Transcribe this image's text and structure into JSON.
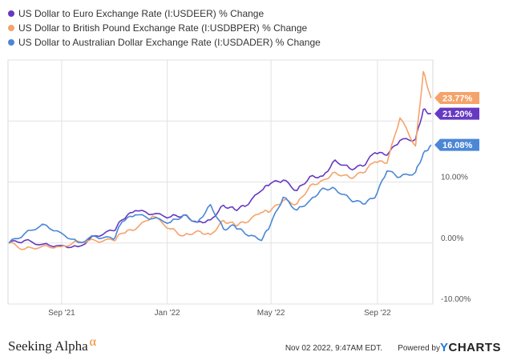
{
  "legend": [
    {
      "label": "US Dollar to Euro Exchange Rate (I:USDEER) % Change",
      "color": "#6639c2"
    },
    {
      "label": "US Dollar to British Pound Exchange Rate (I:USDBPER) % Change",
      "color": "#f5a36b"
    },
    {
      "label": "US Dollar to Australian Dollar Exchange Rate (I:USDADER) % Change",
      "color": "#4b87d6"
    }
  ],
  "chart_data": {
    "type": "line",
    "x_ticks": [
      "Sep '21",
      "Jan '22",
      "May '22",
      "Sep '22"
    ],
    "y_ticks": [
      "-10.00%",
      "0.00%",
      "10.00%"
    ],
    "ylim": [
      -10,
      30
    ],
    "grid": true,
    "series": [
      {
        "name": "US Dollar to Euro Exchange Rate (I:USDEER) % Change",
        "color": "#6639c2",
        "end_label": "21.20%",
        "points": [
          [
            "2021-07-02",
            0.0
          ],
          [
            "2021-07-20",
            0.4
          ],
          [
            "2021-08-10",
            -0.2
          ],
          [
            "2021-08-31",
            -0.4
          ],
          [
            "2021-09-20",
            -0.6
          ],
          [
            "2021-10-10",
            1.2
          ],
          [
            "2021-10-31",
            2.0
          ],
          [
            "2021-11-10",
            3.8
          ],
          [
            "2021-11-25",
            5.3
          ],
          [
            "2021-12-15",
            4.7
          ],
          [
            "2022-01-05",
            4.3
          ],
          [
            "2022-01-20",
            4.6
          ],
          [
            "2022-02-05",
            3.4
          ],
          [
            "2022-02-20",
            3.8
          ],
          [
            "2022-03-07",
            6.2
          ],
          [
            "2022-03-20",
            5.5
          ],
          [
            "2022-04-01",
            6.0
          ],
          [
            "2022-04-20",
            8.6
          ],
          [
            "2022-04-30",
            9.7
          ],
          [
            "2022-05-15",
            10.3
          ],
          [
            "2022-05-31",
            8.6
          ],
          [
            "2022-06-15",
            10.9
          ],
          [
            "2022-06-30",
            11.0
          ],
          [
            "2022-07-14",
            13.6
          ],
          [
            "2022-07-31",
            12.2
          ],
          [
            "2022-08-15",
            12.6
          ],
          [
            "2022-08-29",
            14.8
          ],
          [
            "2022-09-12",
            14.4
          ],
          [
            "2022-09-27",
            16.8
          ],
          [
            "2022-10-15",
            17.0
          ],
          [
            "2022-10-24",
            21.9
          ],
          [
            "2022-11-02",
            21.2
          ]
        ]
      },
      {
        "name": "US Dollar to British Pound Exchange Rate (I:USDBPER) % Change",
        "color": "#f5a36b",
        "end_label": "23.77%",
        "points": [
          [
            "2021-07-02",
            0.0
          ],
          [
            "2021-07-20",
            -1.0
          ],
          [
            "2021-08-10",
            -0.5
          ],
          [
            "2021-08-31",
            -0.6
          ],
          [
            "2021-09-20",
            0.3
          ],
          [
            "2021-10-10",
            0.4
          ],
          [
            "2021-10-31",
            0.4
          ],
          [
            "2021-11-10",
            1.6
          ],
          [
            "2021-11-25",
            2.2
          ],
          [
            "2021-12-15",
            4.4
          ],
          [
            "2022-01-05",
            2.3
          ],
          [
            "2022-01-20",
            1.2
          ],
          [
            "2022-02-05",
            2.0
          ],
          [
            "2022-02-20",
            1.4
          ],
          [
            "2022-03-07",
            3.7
          ],
          [
            "2022-03-20",
            3.0
          ],
          [
            "2022-04-01",
            3.3
          ],
          [
            "2022-04-20",
            5.0
          ],
          [
            "2022-04-30",
            5.2
          ],
          [
            "2022-05-15",
            7.0
          ],
          [
            "2022-05-31",
            6.4
          ],
          [
            "2022-06-15",
            9.4
          ],
          [
            "2022-06-30",
            10.3
          ],
          [
            "2022-07-14",
            11.6
          ],
          [
            "2022-07-31",
            10.7
          ],
          [
            "2022-08-15",
            11.5
          ],
          [
            "2022-08-29",
            13.3
          ],
          [
            "2022-09-12",
            13.1
          ],
          [
            "2022-09-27",
            20.5
          ],
          [
            "2022-10-15",
            15.9
          ],
          [
            "2022-10-24",
            28.1
          ],
          [
            "2022-11-02",
            23.77
          ]
        ]
      },
      {
        "name": "US Dollar to Australian Dollar Exchange Rate (I:USDADER) % Change",
        "color": "#4b87d6",
        "end_label": "16.08%",
        "points": [
          [
            "2021-07-02",
            0.0
          ],
          [
            "2021-07-20",
            1.5
          ],
          [
            "2021-08-10",
            3.1
          ],
          [
            "2021-08-31",
            1.7
          ],
          [
            "2021-09-20",
            0.1
          ],
          [
            "2021-10-10",
            1.1
          ],
          [
            "2021-10-31",
            0.6
          ],
          [
            "2021-11-10",
            3.5
          ],
          [
            "2021-11-25",
            4.6
          ],
          [
            "2021-12-15",
            4.0
          ],
          [
            "2022-01-05",
            3.4
          ],
          [
            "2022-01-20",
            4.6
          ],
          [
            "2022-02-05",
            3.4
          ],
          [
            "2022-02-20",
            6.3
          ],
          [
            "2022-03-07",
            2.3
          ],
          [
            "2022-03-20",
            2.8
          ],
          [
            "2022-04-01",
            1.5
          ],
          [
            "2022-04-20",
            0.4
          ],
          [
            "2022-04-30",
            2.9
          ],
          [
            "2022-05-15",
            7.5
          ],
          [
            "2022-05-31",
            5.4
          ],
          [
            "2022-06-15",
            7.0
          ],
          [
            "2022-06-30",
            9.0
          ],
          [
            "2022-07-14",
            8.9
          ],
          [
            "2022-07-31",
            7.2
          ],
          [
            "2022-08-15",
            6.4
          ],
          [
            "2022-08-29",
            7.4
          ],
          [
            "2022-09-12",
            11.8
          ],
          [
            "2022-09-27",
            10.8
          ],
          [
            "2022-10-15",
            11.6
          ],
          [
            "2022-10-24",
            14.7
          ],
          [
            "2022-11-02",
            16.08
          ]
        ]
      }
    ]
  },
  "footer": {
    "brand": "Seeking Alpha",
    "brand_symbol": "α",
    "timestamp": "Nov 02 2022, 9:47AM EDT.",
    "powered_by": "Powered by",
    "ycharts_y": "Y",
    "ycharts_rest": "CHARTS"
  }
}
